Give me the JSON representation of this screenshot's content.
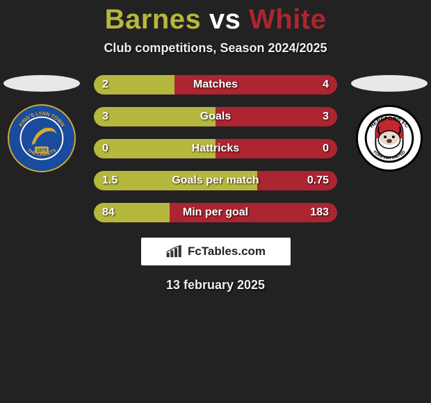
{
  "title": {
    "player_a": "Barnes",
    "vs": "vs",
    "player_b": "White"
  },
  "subtitle": "Club competitions, Season 2024/2025",
  "colors": {
    "player_a": "#b6b73d",
    "player_b": "#ac2531",
    "ellipse_a": "#e8e8e8",
    "ellipse_b": "#e8e8e8",
    "bar_bg": "#444444",
    "text": "#ffffff"
  },
  "clubs": {
    "a": {
      "name": "King's Lynn Town FC",
      "badge_bg": "#1a4b9c",
      "badge_ring": "#d4a938",
      "badge_year": "1879"
    },
    "b": {
      "name": "Hereford FC",
      "badge_bg": "#ffffff",
      "badge_ring": "#000000",
      "badge_accent": "#c2262f"
    }
  },
  "stats": [
    {
      "label": "Matches",
      "a": "2",
      "b": "4",
      "a_pct": 33,
      "b_pct": 67
    },
    {
      "label": "Goals",
      "a": "3",
      "b": "3",
      "a_pct": 50,
      "b_pct": 50
    },
    {
      "label": "Hattricks",
      "a": "0",
      "b": "0",
      "a_pct": 50,
      "b_pct": 50
    },
    {
      "label": "Goals per match",
      "a": "1.5",
      "b": "0.75",
      "a_pct": 67,
      "b_pct": 33
    },
    {
      "label": "Min per goal",
      "a": "84",
      "b": "183",
      "a_pct": 31,
      "b_pct": 69
    }
  ],
  "brand": "FcTables.com",
  "footer_date": "13 february 2025"
}
